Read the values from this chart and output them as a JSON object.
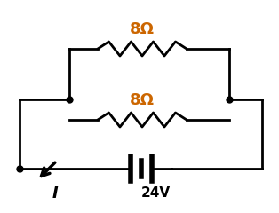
{
  "bg_color": "#ffffff",
  "line_color": "#000000",
  "label_color": "#cc6600",
  "text_color": "#000000",
  "resistor1_label": "8Ω",
  "resistor2_label": "8Ω",
  "battery_label": "24V",
  "current_label": "I",
  "fig_width": 3.14,
  "fig_height": 2.4,
  "dpi": 100,
  "lw": 2.0
}
